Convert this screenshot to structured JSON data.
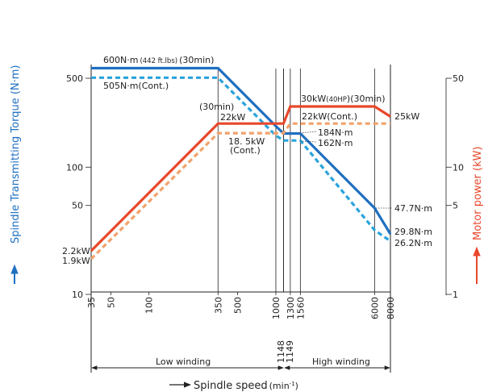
{
  "chart_data": {
    "type": "line",
    "x": [
      35,
      350,
      1000,
      1148,
      1149,
      1300,
      1560,
      6000,
      8000
    ],
    "xticks": [
      "35",
      "50",
      "100",
      "350",
      "500",
      "1000",
      "1300",
      "1560",
      "6000",
      "8000"
    ],
    "xscale": "log",
    "xlim": [
      35,
      8000
    ],
    "left_axis": {
      "label": "Spindle Transmitting Torque (N·m)",
      "ticks": [
        "10",
        "50",
        "100",
        "500"
      ],
      "scale": "log",
      "range": [
        10,
        700
      ]
    },
    "right_axis": {
      "label": "Motor power (kW)",
      "ticks": [
        "1",
        "5",
        "10",
        "50"
      ],
      "scale": "log",
      "range": [
        1,
        70
      ]
    },
    "xlabel": "Spindle speed",
    "xlabel_unit": "(min",
    "xlabel_unit_exp": "-1",
    "xlabel_unit_close": ")",
    "series": [
      {
        "name": "600N·m (30min)",
        "axis": "left",
        "style": "solid",
        "color": "#1f6fc0",
        "points": [
          [
            35,
            600
          ],
          [
            350,
            600
          ],
          [
            1000,
            210
          ],
          [
            1149,
            184
          ],
          [
            1560,
            184
          ],
          [
            6000,
            47.7
          ],
          [
            8000,
            29.8
          ]
        ]
      },
      {
        "name": "505N·m (Cont.)",
        "axis": "left",
        "style": "dashed",
        "color": "#2aa3dc",
        "points": [
          [
            35,
            505
          ],
          [
            350,
            505
          ],
          [
            1000,
            177
          ],
          [
            1149,
            162
          ],
          [
            1560,
            162
          ],
          [
            6000,
            32
          ],
          [
            8000,
            26.2
          ]
        ]
      },
      {
        "name": "22kW (30min) / 30kW (30min)",
        "axis": "right",
        "style": "solid",
        "color": "#e8482c",
        "points": [
          [
            35,
            2.2
          ],
          [
            350,
            22
          ],
          [
            1000,
            22
          ],
          [
            1148,
            22
          ],
          [
            1300,
            30
          ],
          [
            6000,
            30
          ],
          [
            8000,
            25
          ]
        ]
      },
      {
        "name": "18.5kW (Cont.) / 22kW (Cont.)",
        "axis": "right",
        "style": "dashed",
        "color": "#f2a26b",
        "points": [
          [
            35,
            1.9
          ],
          [
            350,
            18.5
          ],
          [
            1000,
            18.5
          ],
          [
            1148,
            18.5
          ],
          [
            1300,
            22
          ],
          [
            8000,
            22
          ]
        ]
      }
    ],
    "annotations": {
      "torque_30min": "600N·m",
      "torque_30min_lbs": "(442 ft.lbs)",
      "torque_30min_time": "(30min)",
      "torque_cont": "505N·m(Cont.)",
      "power_30min_low_time": "(30min)",
      "power_30min_low": "22kW",
      "power_cont_low": "18. 5kW",
      "power_cont_low_tag": "(Cont.)",
      "power_30min_high": "30kW",
      "power_30min_high_hp": "(40HP",
      "power_30min_high_time": ")(30min)",
      "power_cont_high": "22kW(Cont.)",
      "power_max_end": "25kW",
      "torque_184": "184N·m",
      "torque_162": "162N·m",
      "torque_477": "47.7N·m",
      "torque_298": "29.8N·m",
      "torque_262": "26.2N·m",
      "power_start_30": "2.2kW",
      "power_start_cont": "1.9kW",
      "low_winding": "Low winding",
      "high_winding": "High winding",
      "switch_low": "1148",
      "switch_high": "1149"
    }
  }
}
